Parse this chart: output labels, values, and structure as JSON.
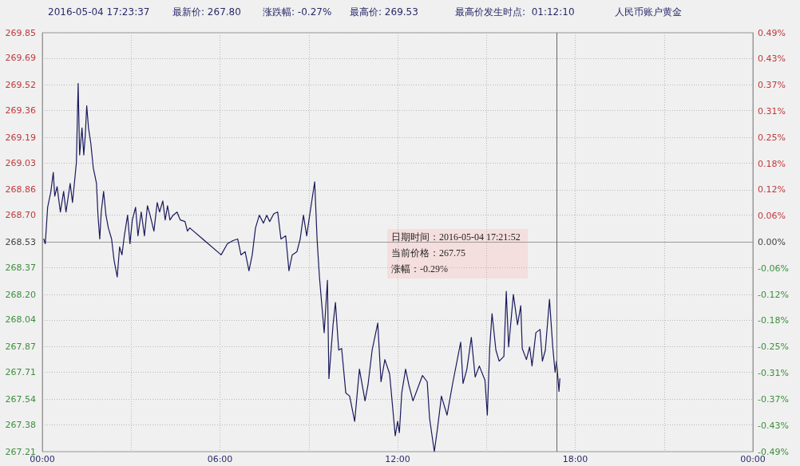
{
  "chart_data": {
    "type": "line",
    "annotations": [
      "2016-05-04 17:23:37",
      "最新价: 267.80",
      "涨跌幅: -0.27%",
      "最高价: 269.53",
      "最高价发生时点:  01:12:10",
      "人民币账户黄金",
      "日期时间：2016-05-04 17:21:52",
      "当前价格：267.75",
      "涨幅：-0.29%"
    ],
    "series": [
      {
        "color": "#1a1a5e",
        "x": [
          0.05,
          0.1,
          0.18,
          0.29,
          0.37,
          0.42,
          0.5,
          0.61,
          0.72,
          0.8,
          0.94,
          1.02,
          1.15,
          1.21,
          1.26,
          1.34,
          1.4,
          1.45,
          1.5,
          1.56,
          1.64,
          1.72,
          1.83,
          1.88,
          1.94,
          1.99,
          2.07,
          2.15,
          2.23,
          2.34,
          2.42,
          2.53,
          2.61,
          2.69,
          2.77,
          2.88,
          2.96,
          3.04,
          3.15,
          3.23,
          3.34,
          3.45,
          3.55,
          3.64,
          3.77,
          3.88,
          3.96,
          4.07,
          4.15,
          4.23,
          4.31,
          4.42,
          4.55,
          4.66,
          4.82,
          4.9,
          4.98,
          6.04,
          6.25,
          6.44,
          6.6,
          6.71,
          6.85,
          6.98,
          7.09,
          7.2,
          7.33,
          7.47,
          7.58,
          7.68,
          7.82,
          7.95,
          8.06,
          8.22,
          8.33,
          8.44,
          8.6,
          8.71,
          8.82,
          8.93,
          9.03,
          9.11,
          9.2,
          9.28,
          9.36,
          9.52,
          9.63,
          9.68,
          9.82,
          9.9,
          10.01,
          10.11,
          10.25,
          10.38,
          10.55,
          10.71,
          10.9,
          11.0,
          11.14,
          11.33,
          11.44,
          11.57,
          11.73,
          11.92,
          12.0,
          12.06,
          12.14,
          12.27,
          12.38,
          12.52,
          12.68,
          12.84,
          13.0,
          13.08,
          13.24,
          13.35,
          13.48,
          13.67,
          13.86,
          14.13,
          14.21,
          14.34,
          14.49,
          14.62,
          14.76,
          14.95,
          15.03,
          15.11,
          15.19,
          15.32,
          15.43,
          15.59,
          15.67,
          15.75,
          15.91,
          16.05,
          16.16,
          16.21,
          16.35,
          16.46,
          16.54,
          16.67,
          16.81,
          16.89,
          16.99,
          17.13,
          17.24,
          17.32,
          17.37,
          17.45,
          17.48
        ],
        "values": [
          268.55,
          268.52,
          268.75,
          268.85,
          268.97,
          268.82,
          268.88,
          268.72,
          268.85,
          268.72,
          268.9,
          268.78,
          269.03,
          269.53,
          269.08,
          269.25,
          269.08,
          269.2,
          269.39,
          269.25,
          269.15,
          269.0,
          268.9,
          268.7,
          268.55,
          268.72,
          268.85,
          268.7,
          268.62,
          268.55,
          268.42,
          268.31,
          268.5,
          268.45,
          268.57,
          268.7,
          268.52,
          268.67,
          268.75,
          268.57,
          268.72,
          268.57,
          268.76,
          268.7,
          268.6,
          268.78,
          268.72,
          268.79,
          268.67,
          268.76,
          268.67,
          268.7,
          268.72,
          268.67,
          268.66,
          268.6,
          268.62,
          268.45,
          268.52,
          268.54,
          268.55,
          268.45,
          268.47,
          268.35,
          268.45,
          268.62,
          268.7,
          268.65,
          268.7,
          268.66,
          268.71,
          268.72,
          268.55,
          268.57,
          268.35,
          268.45,
          268.47,
          268.55,
          268.7,
          268.57,
          268.7,
          268.8,
          268.91,
          268.55,
          268.31,
          267.96,
          268.29,
          267.67,
          268.01,
          268.15,
          267.85,
          267.86,
          267.58,
          267.56,
          267.4,
          267.73,
          267.53,
          267.63,
          267.85,
          268.02,
          267.65,
          267.79,
          267.7,
          267.31,
          267.4,
          267.33,
          267.58,
          267.73,
          267.63,
          267.53,
          267.61,
          267.69,
          267.65,
          267.42,
          267.21,
          267.36,
          267.56,
          267.44,
          267.64,
          267.9,
          267.64,
          267.73,
          267.93,
          267.68,
          267.75,
          267.66,
          267.44,
          267.86,
          268.08,
          267.85,
          267.78,
          267.81,
          268.22,
          267.87,
          268.2,
          268.01,
          268.13,
          267.86,
          267.79,
          267.87,
          267.75,
          267.96,
          267.98,
          267.78,
          267.85,
          268.17,
          267.87,
          267.71,
          267.78,
          267.59,
          267.67
        ]
      }
    ],
    "xlim": [
      0,
      24
    ],
    "xticks": [
      {
        "value": 0,
        "label": "00:00"
      },
      {
        "value": 3,
        "label": null
      },
      {
        "value": 6,
        "label": "06:00"
      },
      {
        "value": 9,
        "label": null
      },
      {
        "value": 12,
        "label": "12:00"
      },
      {
        "value": 15,
        "label": null
      },
      {
        "value": 18,
        "label": "18:00"
      },
      {
        "value": 21,
        "label": null
      },
      {
        "value": 24,
        "label": "00:00"
      }
    ],
    "ylim": [
      267.21,
      269.85
    ],
    "yticks": [
      267.21,
      267.38,
      267.54,
      267.71,
      267.87,
      268.04,
      {
        "value": 268.2,
        "label": "268.20"
      },
      268.37,
      268.53,
      {
        "value": 268.7,
        "label": "268.70"
      },
      268.86,
      269.03,
      269.19,
      269.36,
      269.52,
      269.69,
      269.85
    ],
    "y2lim": [
      -0.49,
      0.49
    ],
    "y2ticks": [
      {
        "value": -0.49,
        "label": "-0.49%"
      },
      {
        "value": -0.42875,
        "label": "-0.43%"
      },
      {
        "value": -0.3675,
        "label": "-0.37%"
      },
      {
        "value": -0.30625,
        "label": "-0.31%"
      },
      {
        "value": -0.245,
        "label": "-0.25%"
      },
      {
        "value": -0.18375,
        "label": "-0.18%"
      },
      {
        "value": -0.1225,
        "label": "-0.12%"
      },
      {
        "value": -0.06125,
        "label": "-0.06%"
      },
      {
        "value": 0,
        "label": "0.00%"
      },
      {
        "value": 0.06125,
        "label": "0.06%"
      },
      {
        "value": 0.1225,
        "label": "0.12%"
      },
      {
        "value": 0.18375,
        "label": "0.18%"
      },
      {
        "value": 0.245,
        "label": "0.25%"
      },
      {
        "value": 0.30625,
        "label": "0.31%"
      },
      {
        "value": 0.3675,
        "label": "0.37%"
      },
      {
        "value": 0.42875,
        "label": "0.43%"
      },
      {
        "value": 0.49,
        "label": "0.49%"
      }
    ],
    "ref_lines": [
      {
        "axis": "x",
        "value": 17.36,
        "color": "#666666"
      }
    ],
    "grid": true,
    "marker": "none",
    "line_style": "solid"
  }
}
